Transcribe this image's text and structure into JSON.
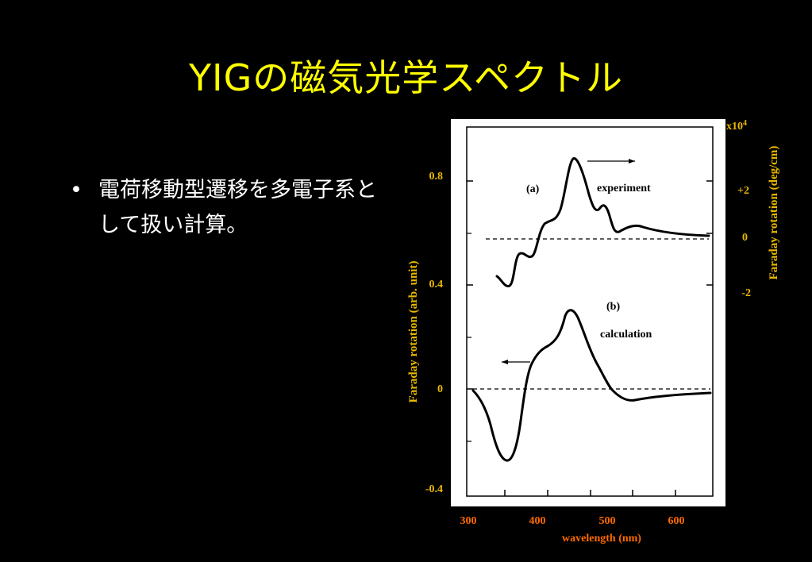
{
  "slide": {
    "title": "YIGの磁気光学スペクトル",
    "bullet_marker": "•",
    "bullets": [
      "電荷移動型遷移を多電子系として扱い計算。"
    ]
  },
  "colors": {
    "background": "#000000",
    "title": "#ffff00",
    "axis_label": "#e8b800",
    "x_axis_label": "#ff6a00",
    "panel": "#ffffff",
    "curve": "#000000"
  },
  "figure": {
    "left_axis": {
      "label": "Faraday rotation (arb. unit)",
      "ticks": [
        "0.8",
        "0.4",
        "0",
        "-0.4"
      ]
    },
    "right_axis": {
      "label": "Faraday rotation (deg/cm)",
      "multiplier_base": "x10",
      "multiplier_exp": "4",
      "ticks": [
        "+2",
        "0",
        "-2"
      ]
    },
    "x_axis": {
      "label": "wavelength (nm)",
      "ticks": [
        "300",
        "400",
        "500",
        "600"
      ]
    },
    "curve_a": {
      "label": "(a)",
      "name": "experiment",
      "arrow": "right"
    },
    "curve_b": {
      "label": "(b)",
      "name": "calculation",
      "arrow": "left"
    }
  }
}
